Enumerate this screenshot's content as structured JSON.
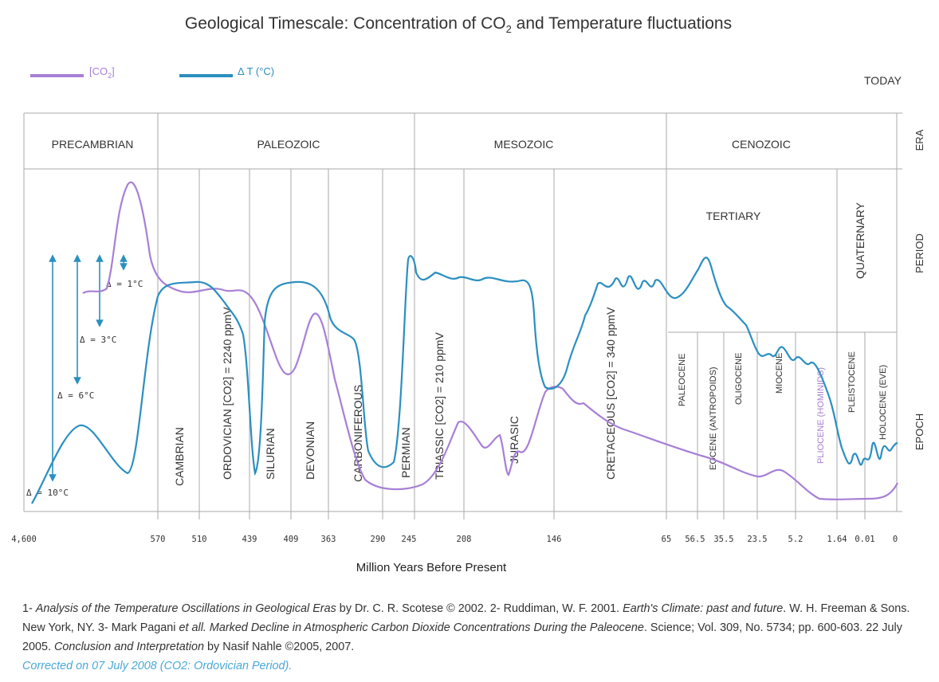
{
  "title_main": "Geological Timescale: Concentration of CO",
  "title_sub": "2",
  "title_rest": " and Temperature fluctuations",
  "legend": {
    "co2_label_pre": "[CO",
    "co2_label_sub": "2",
    "co2_label_post": "]",
    "dt_label": "Δ T (°C)"
  },
  "today_label": "TODAY",
  "row_labels": {
    "era": "ERA",
    "period": "PERIOD",
    "epoch": "EPOCH"
  },
  "eras": [
    "PRECAMBRIAN",
    "PALEOZOIC",
    "MESOZOIC",
    "CENOZOIC"
  ],
  "periods": [
    "CAMBRIAN",
    "ORDOVICIAN [CO2] = 2240 ppmV",
    "SILURIAN",
    "DEVONIAN",
    "CARBONIFEROUS",
    "PERMIAN",
    "TRIASSIC [CO2] = 210 ppmV",
    "JURASIC",
    "CRETACEOUS [CO2] = 340 ppmV",
    "TERTIARY",
    "QUATERNARY"
  ],
  "epochs": [
    "PALEOCENE",
    "EOCENE (ANTROPOIDS)",
    "OLIGOCENE",
    "MIOCENE",
    "PLIOCENE (HOMINIDS)",
    "PLEISTOCENE",
    "HOLOCENE (EVE)"
  ],
  "delta_labels": [
    "Δ = 1°C",
    "Δ = 3°C",
    "Δ = 6°C",
    "Δ = 10°C"
  ],
  "xlabel": "Million Years Before Present",
  "caption": {
    "p1": "1- ",
    "p1i": "Analysis of the Temperature Oscillations in Geological Eras",
    "p2": " by Dr. C. R. Scotese © 2002. 2- Ruddiman, W. F. 2001. ",
    "p2i": "Earth's Climate: past and future",
    "p3": ". W. H. Freeman & Sons. New York, NY. 3- Mark Pagani ",
    "p3i": "et all. Marked Decline in Atmospheric Carbon Dioxide Concentrations During the Paleocene",
    "p4": ". Science; Vol. 309, No. 5734; pp. 600-603. 22 July 2005. ",
    "p4i": "Conclusion and Interpretation",
    "p5": " by Nasif Nahle ©2005, 2007.",
    "p6": "Corrected on 07 July 2008 (CO2: Ordovician Period)."
  },
  "colors": {
    "co2": "#a77fd6",
    "dt": "#2b8fc0",
    "grid": "#aaaaaa",
    "axis": "#999999"
  },
  "chart_data": {
    "type": "line",
    "title": "Geological Timescale: Concentration of CO2 and Temperature fluctuations",
    "xlabel": "Million Years Before Present",
    "x_ticks": [
      "4,600",
      "570",
      "510",
      "439",
      "409",
      "363",
      "290",
      "245",
      "208",
      "146",
      "65",
      "56.5",
      "35.5",
      "23.5",
      "5.2",
      "1.64",
      "0.01",
      "0"
    ],
    "xlim": [
      "4,600",
      "0"
    ],
    "x_scale": "nonlinear (boundary ticks unevenly spaced)",
    "series": [
      {
        "name": "[CO2]",
        "color": "#a77fd6"
      },
      {
        "name": "Δ T (°C)",
        "color": "#2b8fc0"
      }
    ],
    "annotations": [
      "ORDOVICIAN [CO2] = 2240 ppmV",
      "TRIASSIC [CO2] = 210 ppmV",
      "CRETACEOUS [CO2] = 340 ppmV",
      "Δ = 1°C",
      "Δ = 3°C",
      "Δ = 6°C",
      "Δ = 10°C"
    ],
    "legend_position": "top-left"
  }
}
